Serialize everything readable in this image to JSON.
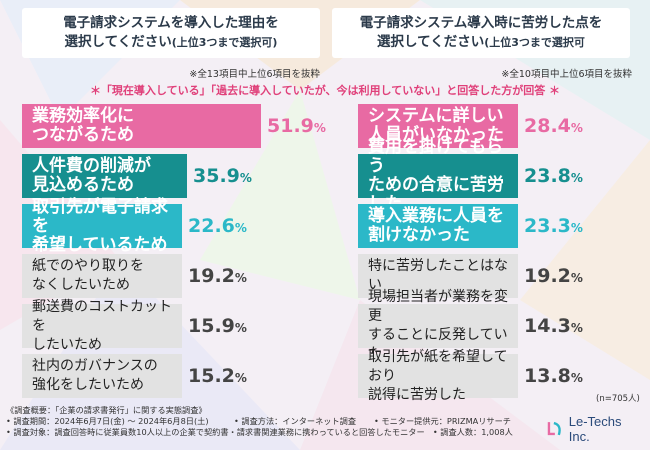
{
  "header_left": {
    "line1": "電子請求システムを導入した理由を",
    "line2": "選択してください",
    "line2_small": "(上位3つまで選択可)"
  },
  "header_right": {
    "line1": "電子請求システム導入時に苦労した点を",
    "line2": "選択してください",
    "line2_small": "(上位3つまで選択可"
  },
  "note_left": "※全13項目中上位6項目を抜粋",
  "note_right": "※全10項目中上位6項目を抜粋",
  "banner": "＊「現在導入している」「過去に導入していたが、今は利用していない」と回答した方が回答 ＊",
  "n_value": "(n=705人)",
  "colors": {
    "pink": "#e86aa3",
    "teal": "#168f8f",
    "cyan": "#2bb8c8",
    "gray": "#e2e2e2"
  },
  "chart_data": [
    {
      "type": "bar",
      "title": "電子請求システムを導入した理由を選択してください(上位3つまで選択可)",
      "unit": "%",
      "categories": [
        "業務効率化に\nつながるため",
        "人件費の削減が\n見込めるため",
        "取引先が電子請求を\n希望しているため",
        "紙でのやり取りを\nなくしたいため",
        "郵送費のコストカットを\nしたいため",
        "社内のガバナンスの\n強化をしたいため"
      ],
      "values": [
        51.9,
        35.9,
        22.6,
        19.2,
        15.9,
        15.2
      ]
    },
    {
      "type": "bar",
      "title": "電子請求システム導入時に苦労した点を選択してください(上位3つまで選択可",
      "unit": "%",
      "categories": [
        "システムに詳しい\n人員がいなかった",
        "費用を掛けてもらう\nための合意に苦労した",
        "導入業務に人員を\n割けなかった",
        "特に苦労したことはない",
        "現場担当者が業務を変更\nすることに反発していた",
        "取引先が紙を希望しており\n説得に苦労した"
      ],
      "values": [
        28.4,
        23.8,
        23.3,
        19.2,
        14.3,
        13.8
      ]
    }
  ],
  "footer": {
    "line1": "《調査概要：「企業の請求書発行」に関する実態調査》",
    "line2a": "• 調査期間：2024年6月7日(金) 〜 2024年6月8日(土)",
    "line2b": "• 調査方法：インターネット調査",
    "line2c": "• モニター提供元：PRIZMAリサーチ",
    "line3a": "• 調査対象：調査回答時に従業員数10人以上の企業で契約書・請求書関連業務に携わっていると回答したモニター",
    "line3b": "• 調査人数：1,008人"
  },
  "logo": {
    "text": "Le-Techs Inc."
  }
}
